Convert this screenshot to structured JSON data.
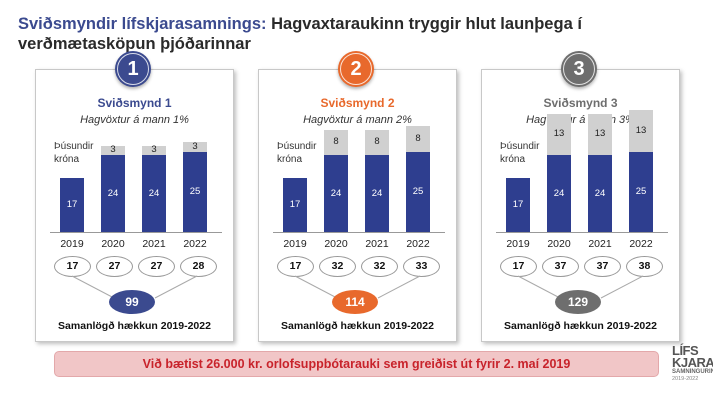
{
  "header": {
    "title_highlight": "Sviðsmyndir lífskjarasamnings:",
    "title_rest": " Hagvaxtaraukinn tryggir hlut launþega í verðmætasköpun þjóðarinnar"
  },
  "panels": [
    {
      "number": "1",
      "name": "Sviðsmynd 1",
      "subtitle": "Hagvöxtur á mann 1%",
      "color": "#3b4a8f",
      "ylabel_line1": "Þúsundir",
      "ylabel_line2": "króna",
      "totals": [
        "17",
        "27",
        "27",
        "28"
      ],
      "sum": "99",
      "sum_label": "Samanlögð hækkun 2019-2022"
    },
    {
      "number": "2",
      "name": "Sviðsmynd 2",
      "subtitle": "Hagvöxtur á mann 2%",
      "color": "#e8692c",
      "ylabel_line1": "Þúsundir",
      "ylabel_line2": "króna",
      "totals": [
        "17",
        "32",
        "32",
        "33"
      ],
      "sum": "114",
      "sum_label": "Samanlögð hækkun 2019-2022"
    },
    {
      "number": "3",
      "name": "Sviðsmynd 3",
      "subtitle": "Hagvöxtur á mann 3%",
      "color": "#6e6e6e",
      "ylabel_line1": "Þúsundir",
      "ylabel_line2": "króna",
      "totals": [
        "17",
        "37",
        "37",
        "38"
      ],
      "sum": "129",
      "sum_label": "Samanlögð hækkun 2019-2022"
    }
  ],
  "chart_data": [
    {
      "type": "bar",
      "title": "Sviðsmynd 1",
      "subtitle": "Hagvöxtur á mann 1%",
      "ylabel": "Þúsundir króna",
      "categories": [
        "2019",
        "2020",
        "2021",
        "2022"
      ],
      "series": [
        {
          "values": [
            17,
            24,
            24,
            25
          ],
          "color": "#2e3e8f"
        },
        {
          "values": [
            0,
            3,
            3,
            3
          ],
          "color": "#d0d0d0"
        }
      ]
    },
    {
      "type": "bar",
      "title": "Sviðsmynd 2",
      "subtitle": "Hagvöxtur á mann 2%",
      "ylabel": "Þúsundir króna",
      "categories": [
        "2019",
        "2020",
        "2021",
        "2022"
      ],
      "series": [
        {
          "values": [
            17,
            24,
            24,
            25
          ],
          "color": "#2e3e8f"
        },
        {
          "values": [
            0,
            8,
            8,
            8
          ],
          "color": "#d0d0d0"
        }
      ]
    },
    {
      "type": "bar",
      "title": "Sviðsmynd 3",
      "subtitle": "Hagvöxtur á mann 3%",
      "ylabel": "Þúsundir króna",
      "categories": [
        "2019",
        "2020",
        "2021",
        "2022"
      ],
      "series": [
        {
          "values": [
            17,
            24,
            24,
            25
          ],
          "color": "#2e3e8f"
        },
        {
          "values": [
            0,
            13,
            13,
            13
          ],
          "color": "#d0d0d0"
        }
      ]
    }
  ],
  "banner": {
    "text": "Við bætist 26.000 kr. orlofsuppbótarauki sem greiðist út fyrir 2. maí 2019"
  },
  "logo": {
    "line1": "LÍFS",
    "line2": "KJARA",
    "line3": "SAMNINGURINN",
    "line4": "2019-2022"
  }
}
